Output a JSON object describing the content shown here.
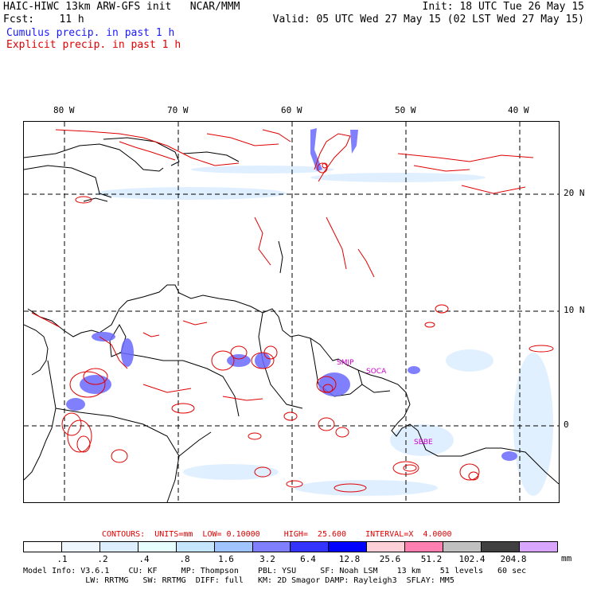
{
  "header": {
    "line1_left": "HAIC-HIWC 13km ARW-GFS init   NCAR/MMM",
    "line1_right": "Init: 18 UTC Tue 26 May 15",
    "line2_left": "Fcst:    11 h",
    "line2_right": "Valid: 05 UTC Wed 27 May 15 (02 LST Wed 27 May 15)",
    "legend_cumulus": "Cumulus precip. in past 1 h",
    "legend_explicit": "Explicit precip. in past 1 h",
    "cumulus_color": "#1a1aff",
    "explicit_color": "#e00000"
  },
  "map": {
    "lon_labels": [
      "80 W",
      "70 W",
      "60 W",
      "50 W",
      "40 W"
    ],
    "lat_labels": [
      "20 N",
      "10 N",
      "0"
    ],
    "stations": [
      "SMJP",
      "SOCA",
      "SBBE"
    ],
    "station_color": "#cc00cc"
  },
  "contours": {
    "text": "CONTOURS:  UNITS=mm  LOW= 0.10000     HIGH=  25.600    INTERVAL=X  4.0000",
    "color": "#e00000"
  },
  "colorbar": {
    "levels": [
      ".1",
      ".2",
      ".4",
      ".8",
      "1.6",
      "3.2",
      "6.4",
      "12.8",
      "25.6",
      "51.2",
      "102.4",
      "204.8"
    ],
    "units": "mm",
    "colors": [
      "#ffffff",
      "#eef7ff",
      "#ddeeff",
      "#e8ffff",
      "#c6e6ff",
      "#9fc4ff",
      "#7f7fff",
      "#3434ff",
      "#0000ff",
      "#ffd0d8",
      "#ff80b0",
      "#c0c0c0",
      "#404040",
      "#d9a6ff"
    ]
  },
  "model_info": {
    "line1": "Model Info: V3.6.1    CU: KF     MP: Thompson    PBL: YSU     SF: Noah LSM    13 km    51 levels   60 sec",
    "line2": "             LW: RRTMG   SW: RRTMG  DIFF: full   KM: 2D Smagor DAMP: Rayleigh3  SFLAY: MM5"
  }
}
